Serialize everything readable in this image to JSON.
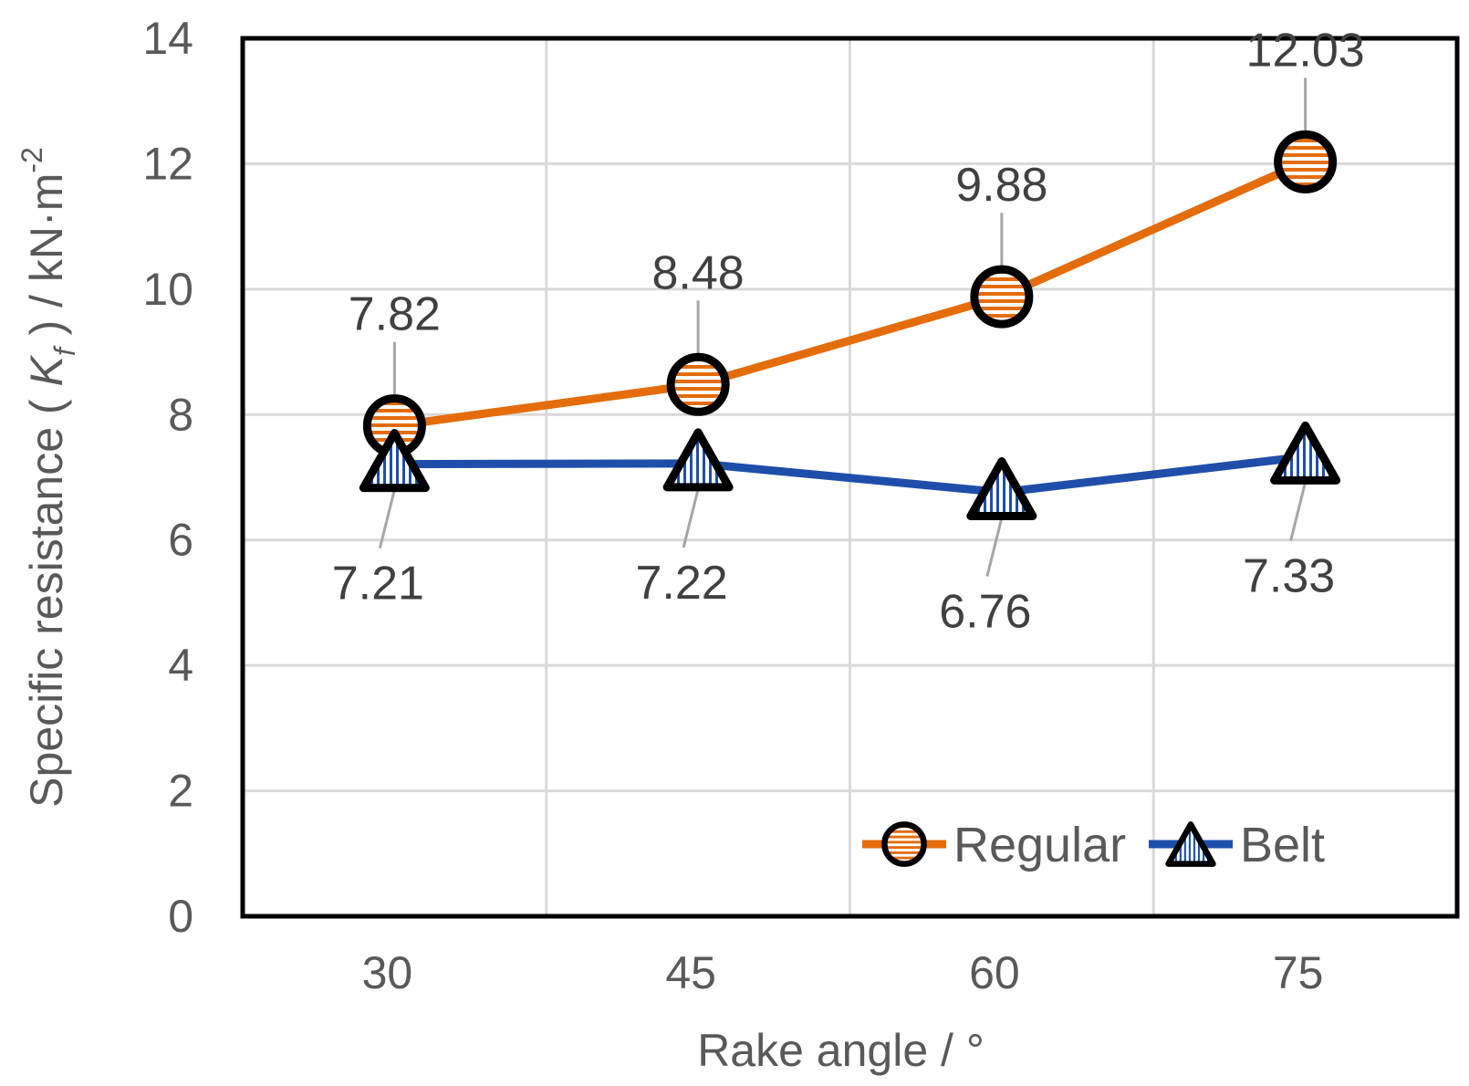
{
  "chart_data": {
    "type": "line",
    "categories": [
      "30",
      "45",
      "60",
      "75"
    ],
    "x": [
      30,
      45,
      60,
      75
    ],
    "xlabel": "Rake angle / °",
    "ylabel": {
      "prefix": "Specific resistance ( ",
      "symbol": "K",
      "subscript": "f",
      "suffix": " ) / kN·m",
      "superscript": "-2"
    },
    "ylim": [
      0,
      14
    ],
    "yticks": [
      0,
      2,
      4,
      6,
      8,
      10,
      12,
      14
    ],
    "grid": true,
    "legend_position": "bottom-right",
    "series": [
      {
        "name": "Regular",
        "values": [
          7.82,
          8.48,
          9.88,
          12.03
        ],
        "labels": [
          "7.82",
          "8.48",
          "9.88",
          "12.03"
        ],
        "color": "#E46C0A",
        "marker": "circle",
        "label_side": "above"
      },
      {
        "name": "Belt",
        "values": [
          7.21,
          7.22,
          6.76,
          7.33
        ],
        "labels": [
          "7.21",
          "7.22",
          "6.76",
          "7.33"
        ],
        "color": "#1F4EAA",
        "marker": "triangle",
        "label_side": "below"
      }
    ]
  }
}
